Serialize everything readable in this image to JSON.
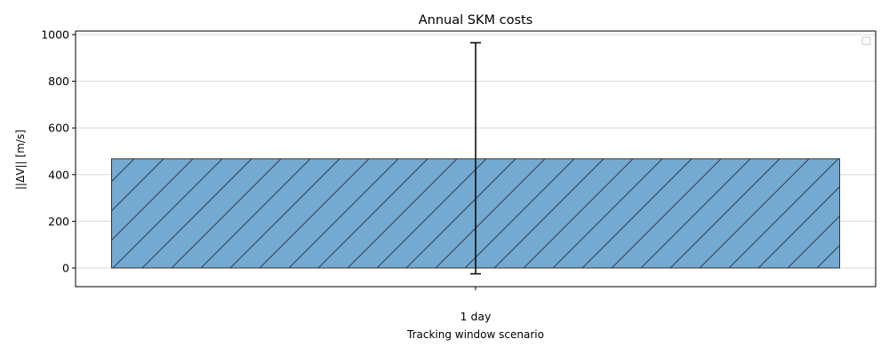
{
  "chart_data": {
    "type": "bar",
    "title": "Annual SKM costs",
    "xlabel": "Tracking window scenario",
    "ylabel": "||ΔV|| [m/s]",
    "categories": [
      "1 day"
    ],
    "values": [
      468
    ],
    "error": {
      "lower": -25,
      "upper": 965
    },
    "ylim": [
      -80,
      1015
    ],
    "yticks": [
      0,
      200,
      400,
      600,
      800,
      1000
    ],
    "grid": "y",
    "legend": "top-right",
    "hatch": "/",
    "colors": {
      "bar": "#74aad1",
      "edge": "#333333",
      "errorbar": "#000000",
      "grid": "#d9d9d9"
    }
  }
}
